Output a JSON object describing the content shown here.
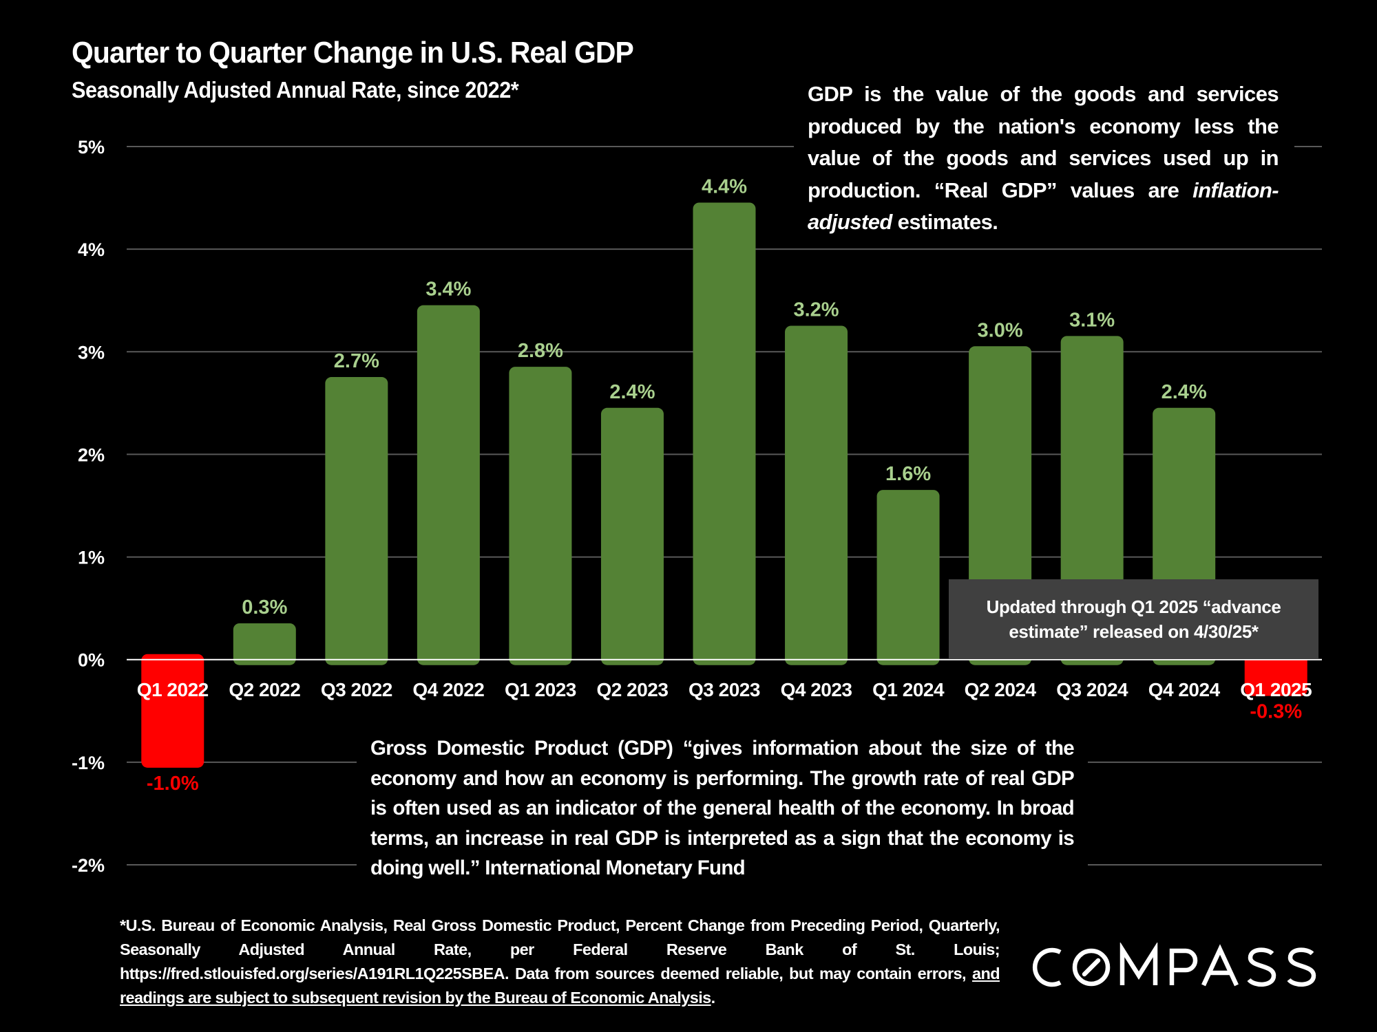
{
  "chart_data": {
    "type": "bar",
    "title": "Quarter to Quarter Change in U.S. Real GDP",
    "subtitle": "Seasonally Adjusted Annual Rate, since 2022*",
    "xlabel": "",
    "ylabel": "",
    "categories": [
      "Q1 2022",
      "Q2 2022",
      "Q3 2022",
      "Q4 2022",
      "Q1 2023",
      "Q2 2023",
      "Q3 2023",
      "Q4 2023",
      "Q1 2024",
      "Q2 2024",
      "Q3 2024",
      "Q4 2024",
      "Q1 2025"
    ],
    "values": [
      -1.0,
      0.3,
      2.7,
      3.4,
      2.8,
      2.4,
      4.4,
      3.2,
      1.6,
      3.0,
      3.1,
      2.4,
      -0.3
    ],
    "data_labels": [
      "-1.0%",
      "0.3%",
      "2.7%",
      "3.4%",
      "2.8%",
      "2.4%",
      "4.4%",
      "3.2%",
      "1.6%",
      "3.0%",
      "3.1%",
      "2.4%",
      "-0.3%"
    ],
    "ylim": [
      -2,
      5
    ],
    "yticks": [
      5,
      4,
      3,
      2,
      1,
      0,
      -1,
      -2
    ],
    "ytick_labels": [
      "5%",
      "4%",
      "3%",
      "2%",
      "1%",
      "0%",
      "-1%",
      "-2%"
    ],
    "grid": true,
    "legend": "none",
    "colors": {
      "positive_bar": "#548235",
      "positive_label": "#A9D08E",
      "negative_bar": "#FF0000",
      "negative_label": "#FF0000",
      "gridline": "#595959",
      "zero_line": "#FFFFFF",
      "background": "#000000"
    }
  },
  "notes": {
    "definition": {
      "text_before": "GDP is the value of the goods and services produced by the nation's economy less the value of the goods and services used up in production. “Real GDP” values are ",
      "emphasis": "inflation-adjusted",
      "text_after": " estimates."
    },
    "update": "Updated through Q1 2025 “advance estimate” released on 4/30/25*",
    "imf_quote": "Gross Domestic Product (GDP) “gives information about the size of the economy and how an economy is performing. The growth rate of real GDP is often used as an indicator of the general health of the economy. In broad terms, an increase in real GDP is interpreted as a sign that the economy is doing well.” International Monetary Fund"
  },
  "footnote": {
    "text": "*U.S. Bureau of Economic Analysis, Real Gross Domestic Product, Percent Change from Preceding Period, Quarterly, Seasonally Adjusted Annual Rate, per Federal Reserve Bank of St. Louis; https://fred.stlouisfed.org/series/A191RL1Q225SBEA. Data from sources deemed reliable, but may contain errors, ",
    "underlined": "and readings are subject to subsequent revision by the Bureau of Economic Analysis",
    "end": "."
  },
  "brand": {
    "logo_text": "COMPASS",
    "logo_icon": "compass-o-slash-icon"
  }
}
